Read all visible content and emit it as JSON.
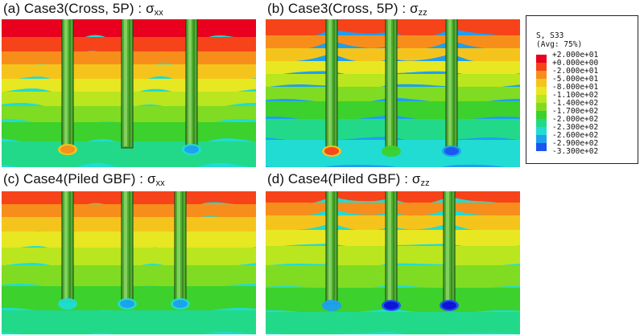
{
  "panels": [
    {
      "id": "a",
      "title": "(a) Case3(Cross, 5P) : σ",
      "sub": "xx"
    },
    {
      "id": "b",
      "title": "(b) Case3(Cross, 5P) : σ",
      "sub": "zz"
    },
    {
      "id": "c",
      "title": "(c) Case4(Piled GBF) : σ",
      "sub": "xx"
    },
    {
      "id": "d",
      "title": "(d) Case4(Piled GBF) : σ",
      "sub": "zz"
    }
  ],
  "legend": {
    "variable": "S, S33",
    "averaging": "(Avg: 75%)",
    "levels": [
      {
        "label": "+2.000e+01",
        "color": "#e8001e"
      },
      {
        "label": "+0.000e+00",
        "color": "#f7431a"
      },
      {
        "label": "-2.000e+01",
        "color": "#f78e1c"
      },
      {
        "label": "-5.000e+01",
        "color": "#f5c41c"
      },
      {
        "label": "-8.000e+01",
        "color": "#e7e722"
      },
      {
        "label": "-1.100e+02",
        "color": "#b9e61f"
      },
      {
        "label": "-1.400e+02",
        "color": "#7fdc22"
      },
      {
        "label": "-1.700e+02",
        "color": "#3cd12c"
      },
      {
        "label": "-2.000e+02",
        "color": "#22d98a"
      },
      {
        "label": "-2.300e+02",
        "color": "#20dcd2"
      },
      {
        "label": "-2.600e+02",
        "color": "#1e9ff0"
      },
      {
        "label": "-2.900e+02",
        "color": "#1a55ee"
      },
      {
        "label": "-3.300e+02",
        "color": "#1010d8"
      }
    ]
  }
}
